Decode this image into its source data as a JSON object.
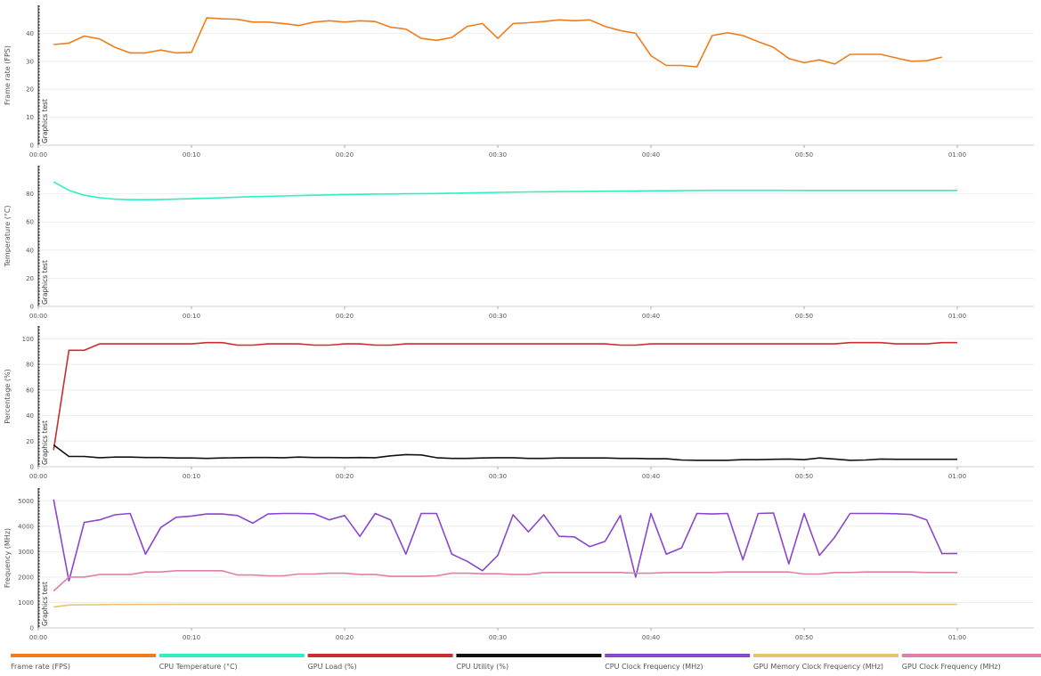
{
  "chart_data": [
    {
      "type": "line",
      "ylabel": "Frame rate (FPS)",
      "ylim": [
        0,
        50
      ],
      "yticks": [
        0,
        10,
        20,
        30,
        40
      ],
      "xticks": [
        "00:00",
        "00:10",
        "00:20",
        "00:30",
        "00:40",
        "00:50",
        "01:00"
      ],
      "xlim": [
        0,
        65
      ],
      "grid": true,
      "annotations": [
        {
          "x": 0,
          "label": "Graphics test"
        }
      ],
      "series": [
        {
          "name": "Frame rate (FPS)",
          "color": "#f07d1b",
          "x": [
            1,
            2,
            3,
            4,
            5,
            6,
            7,
            8,
            9,
            10,
            11,
            12,
            13,
            14,
            15,
            16,
            17,
            18,
            19,
            20,
            21,
            22,
            23,
            24,
            25,
            26,
            27,
            28,
            29,
            30,
            31,
            32,
            33,
            34,
            35,
            36,
            37,
            38,
            39,
            40,
            41,
            42,
            43,
            44,
            45,
            46,
            47,
            48,
            49,
            50,
            51,
            52,
            53,
            54,
            55,
            56,
            57,
            58,
            59
          ],
          "values": [
            36,
            36.5,
            39,
            38,
            35,
            33,
            33,
            34,
            33,
            33.2,
            45.5,
            45.2,
            45,
            44,
            44,
            43.5,
            42.8,
            44,
            44.5,
            44,
            44.5,
            44.2,
            42.2,
            41.5,
            38.2,
            37.5,
            38.5,
            42.5,
            43.5,
            38.2,
            43.5,
            43.8,
            44.2,
            44.8,
            44.5,
            44.8,
            42.5,
            41,
            40,
            32,
            28.5,
            28.5,
            28,
            39.2,
            40.2,
            39.2,
            37,
            35,
            31,
            29.5,
            30.5,
            29,
            32.5,
            32.5,
            32.5,
            31.2,
            30,
            30.2,
            31.5
          ]
        }
      ]
    },
    {
      "type": "line",
      "ylabel": "Temperature (°C)",
      "ylim": [
        0,
        100
      ],
      "yticks": [
        0,
        20,
        40,
        60,
        80
      ],
      "xticks": [
        "00:00",
        "00:10",
        "00:20",
        "00:30",
        "00:40",
        "00:50",
        "01:00"
      ],
      "xlim": [
        0,
        65
      ],
      "grid": true,
      "annotations": [
        {
          "x": 0,
          "label": "Graphics test"
        }
      ],
      "series": [
        {
          "name": "CPU Temperature (°C)",
          "color": "#2cf0c3",
          "x": [
            1,
            2,
            3,
            4,
            5,
            6,
            7,
            8,
            9,
            10,
            12,
            14,
            16,
            18,
            20,
            22,
            24,
            26,
            28,
            30,
            32,
            34,
            36,
            38,
            40,
            42,
            44,
            46,
            48,
            50,
            52,
            54,
            56,
            58,
            60
          ],
          "values": [
            88.5,
            82.5,
            79,
            77.2,
            76.2,
            75.8,
            75.8,
            76,
            76.2,
            76.5,
            77.2,
            78,
            78.5,
            79,
            79.5,
            79.8,
            80,
            80.2,
            80.6,
            81,
            81.3,
            81.5,
            81.7,
            81.9,
            82.1,
            82.3,
            82.5,
            82.5,
            82.5,
            82.4,
            82.4,
            82.4,
            82.4,
            82.4,
            82.4
          ]
        }
      ]
    },
    {
      "type": "line",
      "ylabel": "Percentage (%)",
      "ylim": [
        0,
        110
      ],
      "yticks": [
        0,
        20,
        40,
        60,
        80,
        100
      ],
      "xticks": [
        "00:00",
        "00:10",
        "00:20",
        "00:30",
        "00:40",
        "00:50",
        "01:00"
      ],
      "xlim": [
        0,
        65
      ],
      "grid": true,
      "annotations": [
        {
          "x": 0,
          "label": "Graphics test"
        }
      ],
      "series": [
        {
          "name": "GPU Load (%)",
          "color": "#cc2d2d",
          "x": [
            1,
            2,
            3,
            4,
            5,
            10,
            11,
            12,
            13,
            14,
            15,
            17,
            18,
            19,
            20,
            21,
            22,
            23,
            24,
            25,
            37,
            38,
            39,
            40,
            52,
            53,
            54,
            55,
            56,
            57,
            58,
            59,
            60
          ],
          "values": [
            13,
            91,
            91,
            96,
            96,
            96,
            97,
            97,
            95,
            95,
            96,
            96,
            95,
            95,
            96,
            96,
            95,
            95,
            96,
            96,
            96,
            95,
            95,
            96,
            96,
            97,
            97,
            97,
            96,
            96,
            96,
            97,
            97
          ]
        },
        {
          "name": "CPU Utility (%)",
          "color": "#111111",
          "x": [
            1,
            2,
            3,
            4,
            5,
            6,
            7,
            8,
            9,
            10,
            11,
            12,
            13,
            14,
            15,
            16,
            17,
            18,
            19,
            20,
            21,
            22,
            23,
            24,
            25,
            26,
            27,
            28,
            29,
            30,
            31,
            32,
            33,
            34,
            35,
            36,
            37,
            38,
            39,
            40,
            41,
            42,
            43,
            44,
            45,
            46,
            47,
            48,
            49,
            50,
            51,
            52,
            53,
            54,
            55,
            56,
            57,
            58,
            59,
            60
          ],
          "values": [
            17,
            8,
            8,
            7,
            7.5,
            7.5,
            7.2,
            7.2,
            6.8,
            6.8,
            6.5,
            6.8,
            7,
            7.2,
            7.2,
            7,
            7.5,
            7.2,
            7.2,
            7,
            7.2,
            7,
            8.5,
            9.5,
            9.2,
            7,
            6.5,
            6.5,
            6.8,
            7,
            7,
            6.5,
            6.5,
            6.8,
            6.8,
            6.8,
            6.8,
            6.5,
            6.5,
            6.2,
            6.2,
            5.2,
            5,
            5,
            5,
            5.5,
            5.5,
            5.8,
            6,
            5.5,
            6.8,
            6,
            5,
            5.2,
            6,
            5.8,
            5.8,
            5.8,
            5.8,
            5.8
          ]
        }
      ]
    },
    {
      "type": "line",
      "ylabel": "Frequency (MHz)",
      "ylim": [
        0,
        5500
      ],
      "yticks": [
        0,
        1000,
        2000,
        3000,
        4000,
        5000
      ],
      "xticks": [
        "00:00",
        "00:10",
        "00:20",
        "00:30",
        "00:40",
        "00:50",
        "01:00"
      ],
      "xlim": [
        0,
        65
      ],
      "grid": true,
      "annotations": [
        {
          "x": 0,
          "label": "Graphics test"
        }
      ],
      "series": [
        {
          "name": "CPU Clock Frequency (MHz)",
          "color": "#8a46cc",
          "x": [
            1,
            2,
            3,
            4,
            5,
            6,
            7,
            8,
            9,
            10,
            11,
            12,
            13,
            14,
            15,
            16,
            17,
            18,
            19,
            20,
            21,
            22,
            23,
            24,
            25,
            26,
            27,
            28,
            29,
            30,
            31,
            32,
            33,
            34,
            35,
            36,
            37,
            38,
            39,
            40,
            41,
            42,
            43,
            44,
            45,
            46,
            47,
            48,
            49,
            50,
            51,
            52,
            53,
            54,
            55,
            56,
            57,
            58,
            59,
            60
          ],
          "values": [
            5050,
            1850,
            4150,
            4250,
            4450,
            4500,
            2900,
            3950,
            4350,
            4400,
            4480,
            4480,
            4420,
            4120,
            4480,
            4500,
            4500,
            4490,
            4250,
            4420,
            3600,
            4500,
            4250,
            2900,
            4500,
            4500,
            2900,
            2620,
            2250,
            2850,
            4450,
            3780,
            4450,
            3600,
            3580,
            3200,
            3400,
            4420,
            2000,
            4500,
            2900,
            3150,
            4500,
            4480,
            4500,
            2680,
            4500,
            4520,
            2520,
            4500,
            2850,
            3570,
            4500,
            4500,
            4500,
            4490,
            4460,
            4250,
            2920,
            2930
          ]
        },
        {
          "name": "GPU Memory Clock Frequency (MHz)",
          "color": "#e8c474",
          "x": [
            1,
            2,
            3,
            4,
            5,
            10,
            20,
            30,
            40,
            50,
            60
          ],
          "values": [
            820,
            900,
            910,
            915,
            920,
            925,
            925,
            925,
            925,
            925,
            925
          ]
        },
        {
          "name": "GPU Clock Frequency (MHz)",
          "color": "#e07fa8",
          "x": [
            1,
            2,
            3,
            4,
            5,
            6,
            7,
            8,
            9,
            10,
            11,
            12,
            13,
            14,
            15,
            16,
            17,
            18,
            19,
            20,
            21,
            22,
            23,
            24,
            25,
            26,
            27,
            28,
            29,
            30,
            31,
            32,
            33,
            34,
            35,
            36,
            37,
            38,
            39,
            40,
            41,
            42,
            43,
            44,
            45,
            46,
            47,
            48,
            49,
            50,
            51,
            52,
            53,
            54,
            55,
            56,
            57,
            58,
            59,
            60
          ],
          "values": [
            1450,
            2000,
            2000,
            2100,
            2100,
            2100,
            2200,
            2200,
            2250,
            2250,
            2250,
            2250,
            2080,
            2080,
            2050,
            2050,
            2120,
            2120,
            2150,
            2150,
            2100,
            2100,
            2030,
            2030,
            2030,
            2050,
            2150,
            2150,
            2130,
            2130,
            2100,
            2100,
            2180,
            2180,
            2180,
            2180,
            2180,
            2180,
            2150,
            2150,
            2180,
            2180,
            2180,
            2180,
            2200,
            2200,
            2200,
            2200,
            2200,
            2120,
            2120,
            2180,
            2180,
            2200,
            2200,
            2200,
            2200,
            2180,
            2180,
            2180
          ]
        }
      ]
    }
  ],
  "legend": {
    "placement": "bottom",
    "items": [
      {
        "label": "Frame rate (FPS)",
        "color": "#f07d1b"
      },
      {
        "label": "CPU Temperature (°C)",
        "color": "#2cf0c3"
      },
      {
        "label": "GPU Load (%)",
        "color": "#cc2d2d"
      },
      {
        "label": "CPU Utility (%)",
        "color": "#111111"
      },
      {
        "label": "CPU Clock Frequency (MHz)",
        "color": "#8a46cc"
      },
      {
        "label": "GPU Memory Clock Frequency (MHz)",
        "color": "#e8c474"
      },
      {
        "label": "GPU Clock Frequency (MHz)",
        "color": "#e07fa8"
      }
    ]
  }
}
